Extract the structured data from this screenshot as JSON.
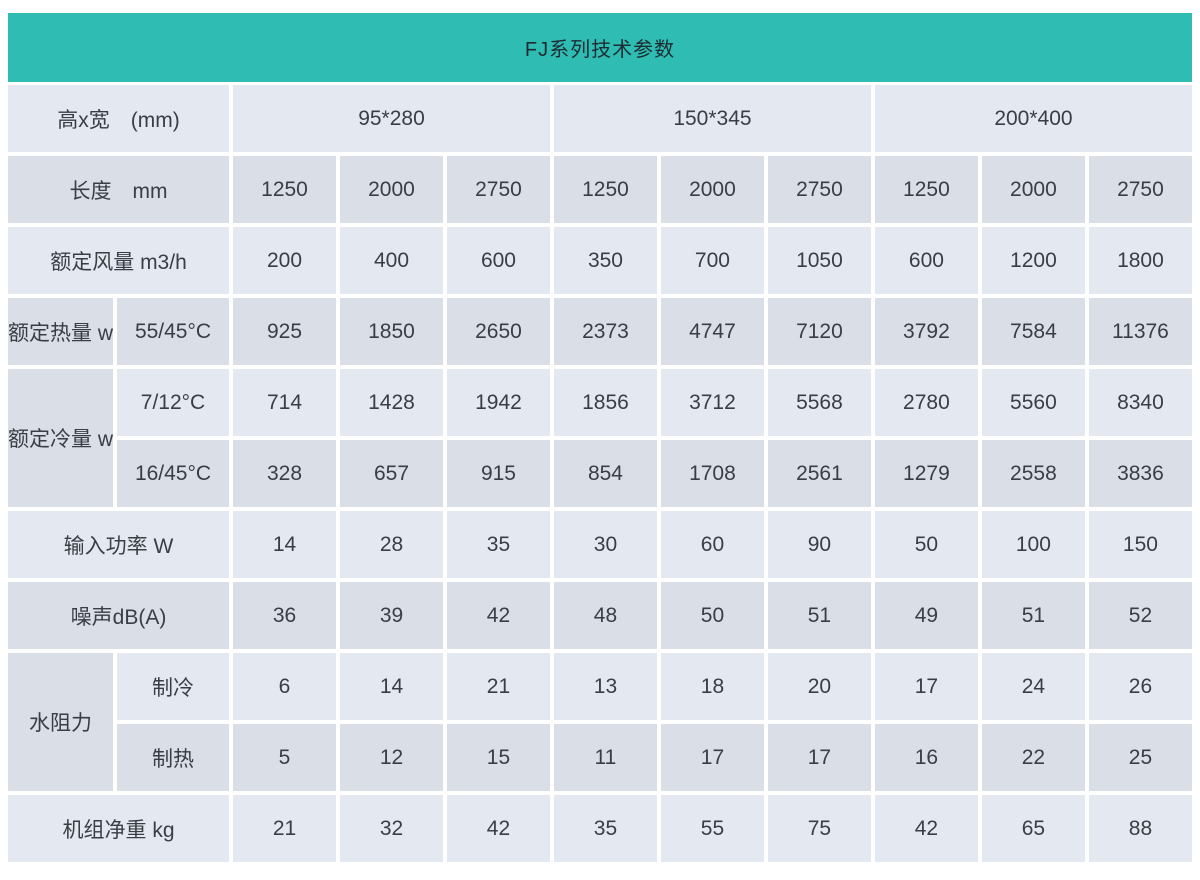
{
  "title": "FJ系列技术参数",
  "colors": {
    "header_bg": "#2fbcb2",
    "row_light": "#e4e9f1",
    "row_dark": "#d9dee7",
    "text": "#393e44",
    "title_text": "#1d2b33"
  },
  "table": {
    "size": {
      "label": "高x宽　(mm)",
      "groups": [
        "95*280",
        "150*345",
        "200*400"
      ]
    },
    "length": {
      "label": "长度　mm",
      "values": [
        "1250",
        "2000",
        "2750",
        "1250",
        "2000",
        "2750",
        "1250",
        "2000",
        "2750"
      ]
    },
    "airflow": {
      "label": "额定风量 m3/h",
      "values": [
        "200",
        "400",
        "600",
        "350",
        "700",
        "1050",
        "600",
        "1200",
        "1800"
      ]
    },
    "heat": {
      "label": "额定热量 w",
      "condition": "55/45°C",
      "values": [
        "925",
        "1850",
        "2650",
        "2373",
        "4747",
        "7120",
        "3792",
        "7584",
        "11376"
      ]
    },
    "cooling": {
      "label": "额定冷量 w",
      "rows": [
        {
          "condition": "7/12°C",
          "values": [
            "714",
            "1428",
            "1942",
            "1856",
            "3712",
            "5568",
            "2780",
            "5560",
            "8340"
          ]
        },
        {
          "condition": "16/45°C",
          "values": [
            "328",
            "657",
            "915",
            "854",
            "1708",
            "2561",
            "1279",
            "2558",
            "3836"
          ]
        }
      ]
    },
    "power": {
      "label": "输入功率 W",
      "values": [
        "14",
        "28",
        "35",
        "30",
        "60",
        "90",
        "50",
        "100",
        "150"
      ]
    },
    "noise": {
      "label": "噪声dB(A)",
      "values": [
        "36",
        "39",
        "42",
        "48",
        "50",
        "51",
        "49",
        "51",
        "52"
      ]
    },
    "water": {
      "label": "水阻力",
      "rows": [
        {
          "condition": "制冷",
          "values": [
            "6",
            "14",
            "21",
            "13",
            "18",
            "20",
            "17",
            "24",
            "26"
          ]
        },
        {
          "condition": "制热",
          "values": [
            "5",
            "12",
            "15",
            "11",
            "17",
            "17",
            "16",
            "22",
            "25"
          ]
        }
      ]
    },
    "weight": {
      "label": "机组净重 kg",
      "values": [
        "21",
        "32",
        "42",
        "35",
        "55",
        "75",
        "42",
        "65",
        "88"
      ]
    }
  }
}
